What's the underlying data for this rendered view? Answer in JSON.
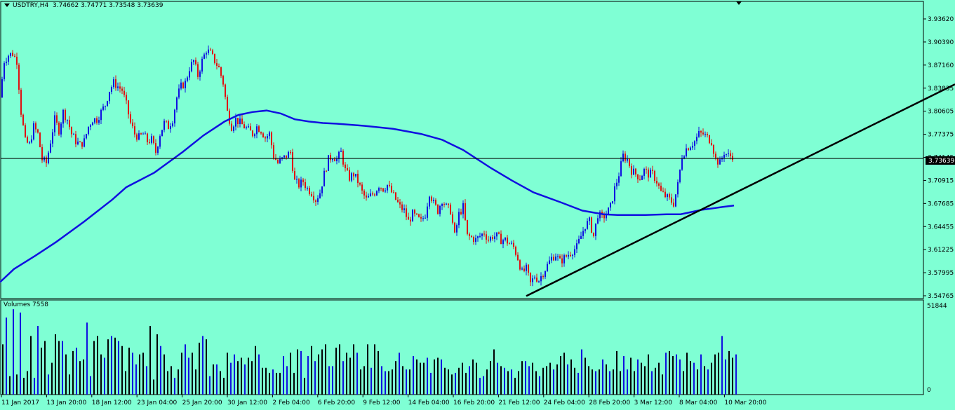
{
  "header": {
    "symbol": "USDTRY,H4",
    "ohlc": "3.74662 3.74771 3.73548 3.73639",
    "volumes_label": "Volumes 7558"
  },
  "colors": {
    "background": "#7FFFD4",
    "bull": "#1010E0",
    "bear": "#E01010",
    "ma": "#1010E0",
    "trendline": "#000000",
    "volume_dark": "#000000",
    "volume_blue": "#1010E0"
  },
  "chart_data": [
    {
      "type": "candlestick",
      "price_axis_ticks": [
        "3.93620",
        "3.90390",
        "3.87160",
        "3.83835",
        "3.80605",
        "3.77375",
        "3.74145",
        "3.70915",
        "3.67685",
        "3.64455",
        "3.61225",
        "3.57995",
        "3.54765"
      ],
      "time_axis_labels": [
        "11 Jan 2017",
        "13 Jan 20:00",
        "18 Jan 12:00",
        "23 Jan 04:00",
        "25 Jan 20:00",
        "30 Jan 12:00",
        "2 Feb 04:00",
        "6 Feb 20:00",
        "9 Feb 12:00",
        "14 Feb 04:00",
        "16 Feb 20:00",
        "21 Feb 12:00",
        "24 Feb 04:00",
        "28 Feb 20:00",
        "3 Mar 12:00",
        "8 Mar 04:00",
        "10 Mar 20:00"
      ],
      "ylim": [
        3.5445,
        3.9515
      ],
      "current_price": "3.73639",
      "close_path": [
        [
          0,
          3.82
        ],
        [
          6,
          3.87
        ],
        [
          12,
          3.878
        ],
        [
          18,
          3.88
        ],
        [
          24,
          3.87
        ],
        [
          30,
          3.8
        ],
        [
          36,
          3.76
        ],
        [
          42,
          3.755
        ],
        [
          48,
          3.78
        ],
        [
          54,
          3.77
        ],
        [
          60,
          3.735
        ],
        [
          66,
          3.73
        ],
        [
          72,
          3.76
        ],
        [
          78,
          3.79
        ],
        [
          84,
          3.775
        ],
        [
          90,
          3.8
        ],
        [
          96,
          3.79
        ],
        [
          102,
          3.77
        ],
        [
          108,
          3.76
        ],
        [
          114,
          3.755
        ],
        [
          120,
          3.76
        ],
        [
          126,
          3.78
        ],
        [
          132,
          3.79
        ],
        [
          138,
          3.79
        ],
        [
          144,
          3.8
        ],
        [
          150,
          3.81
        ],
        [
          156,
          3.83
        ],
        [
          162,
          3.84
        ],
        [
          168,
          3.835
        ],
        [
          174,
          3.83
        ],
        [
          180,
          3.81
        ],
        [
          186,
          3.785
        ],
        [
          192,
          3.77
        ],
        [
          198,
          3.765
        ],
        [
          204,
          3.77
        ],
        [
          210,
          3.76
        ],
        [
          216,
          3.762
        ],
        [
          222,
          3.745
        ],
        [
          228,
          3.77
        ],
        [
          234,
          3.785
        ],
        [
          240,
          3.78
        ],
        [
          246,
          3.79
        ],
        [
          252,
          3.82
        ],
        [
          258,
          3.835
        ],
        [
          264,
          3.84
        ],
        [
          270,
          3.86
        ],
        [
          276,
          3.87
        ],
        [
          282,
          3.85
        ],
        [
          288,
          3.87
        ],
        [
          294,
          3.885
        ],
        [
          300,
          3.88
        ],
        [
          306,
          3.87
        ],
        [
          312,
          3.86
        ],
        [
          318,
          3.84
        ],
        [
          324,
          3.8
        ],
        [
          330,
          3.78
        ],
        [
          336,
          3.79
        ],
        [
          342,
          3.785
        ],
        [
          348,
          3.78
        ],
        [
          354,
          3.775
        ],
        [
          360,
          3.77
        ],
        [
          366,
          3.78
        ],
        [
          372,
          3.775
        ],
        [
          378,
          3.765
        ],
        [
          384,
          3.77
        ],
        [
          390,
          3.74
        ],
        [
          396,
          3.73
        ],
        [
          402,
          3.735
        ],
        [
          408,
          3.74
        ],
        [
          414,
          3.745
        ],
        [
          420,
          3.705
        ],
        [
          426,
          3.7
        ],
        [
          432,
          3.705
        ],
        [
          438,
          3.695
        ],
        [
          444,
          3.69
        ],
        [
          450,
          3.68
        ],
        [
          456,
          3.69
        ],
        [
          462,
          3.715
        ],
        [
          468,
          3.735
        ],
        [
          474,
          3.74
        ],
        [
          480,
          3.735
        ],
        [
          486,
          3.745
        ],
        [
          492,
          3.72
        ],
        [
          498,
          3.71
        ],
        [
          504,
          3.715
        ],
        [
          510,
          3.705
        ],
        [
          516,
          3.69
        ],
        [
          522,
          3.68
        ],
        [
          528,
          3.685
        ],
        [
          534,
          3.69
        ],
        [
          540,
          3.7
        ],
        [
          546,
          3.695
        ],
        [
          552,
          3.7
        ],
        [
          558,
          3.69
        ],
        [
          564,
          3.68
        ],
        [
          570,
          3.67
        ],
        [
          576,
          3.665
        ],
        [
          582,
          3.65
        ],
        [
          588,
          3.66
        ],
        [
          594,
          3.655
        ],
        [
          600,
          3.65
        ],
        [
          606,
          3.66
        ],
        [
          612,
          3.69
        ],
        [
          618,
          3.675
        ],
        [
          624,
          3.665
        ],
        [
          630,
          3.68
        ],
        [
          636,
          3.67
        ],
        [
          642,
          3.665
        ],
        [
          648,
          3.63
        ],
        [
          654,
          3.66
        ],
        [
          660,
          3.67
        ],
        [
          666,
          3.63
        ],
        [
          672,
          3.628
        ],
        [
          678,
          3.625
        ],
        [
          684,
          3.63
        ],
        [
          690,
          3.635
        ],
        [
          696,
          3.625
        ],
        [
          702,
          3.63
        ],
        [
          708,
          3.63
        ],
        [
          714,
          3.625
        ],
        [
          720,
          3.625
        ],
        [
          726,
          3.62
        ],
        [
          732,
          3.615
        ],
        [
          738,
          3.6
        ],
        [
          744,
          3.58
        ],
        [
          750,
          3.585
        ],
        [
          756,
          3.565
        ],
        [
          762,
          3.575
        ],
        [
          768,
          3.57
        ],
        [
          774,
          3.58
        ],
        [
          780,
          3.59
        ],
        [
          786,
          3.6
        ],
        [
          792,
          3.605
        ],
        [
          798,
          3.595
        ],
        [
          804,
          3.6
        ],
        [
          810,
          3.605
        ],
        [
          816,
          3.61
        ],
        [
          822,
          3.615
        ],
        [
          828,
          3.63
        ],
        [
          834,
          3.645
        ],
        [
          840,
          3.65
        ],
        [
          846,
          3.63
        ],
        [
          852,
          3.66
        ],
        [
          858,
          3.655
        ],
        [
          864,
          3.66
        ],
        [
          870,
          3.67
        ],
        [
          876,
          3.695
        ],
        [
          882,
          3.715
        ],
        [
          888,
          3.74
        ],
        [
          894,
          3.735
        ],
        [
          900,
          3.72
        ],
        [
          906,
          3.715
        ],
        [
          912,
          3.71
        ],
        [
          918,
          3.72
        ],
        [
          924,
          3.715
        ],
        [
          930,
          3.715
        ],
        [
          936,
          3.705
        ],
        [
          942,
          3.69
        ],
        [
          948,
          3.685
        ],
        [
          954,
          3.68
        ],
        [
          960,
          3.675
        ],
        [
          966,
          3.7
        ],
        [
          972,
          3.74
        ],
        [
          978,
          3.75
        ],
        [
          984,
          3.755
        ],
        [
          990,
          3.76
        ],
        [
          996,
          3.77
        ],
        [
          1002,
          3.77
        ],
        [
          1008,
          3.765
        ],
        [
          1014,
          3.76
        ],
        [
          1020,
          3.735
        ],
        [
          1026,
          3.73
        ],
        [
          1032,
          3.745
        ],
        [
          1038,
          3.74
        ],
        [
          1044,
          3.74
        ]
      ],
      "moving_average": [
        [
          0,
          3.567
        ],
        [
          20,
          3.585
        ],
        [
          50,
          3.603
        ],
        [
          80,
          3.622
        ],
        [
          120,
          3.65
        ],
        [
          160,
          3.68
        ],
        [
          180,
          3.697
        ],
        [
          220,
          3.717
        ],
        [
          260,
          3.745
        ],
        [
          290,
          3.768
        ],
        [
          320,
          3.787
        ],
        [
          340,
          3.796
        ],
        [
          360,
          3.8
        ],
        [
          380,
          3.802
        ],
        [
          400,
          3.798
        ],
        [
          420,
          3.79
        ],
        [
          440,
          3.787
        ],
        [
          460,
          3.785
        ],
        [
          480,
          3.784
        ],
        [
          520,
          3.781
        ],
        [
          560,
          3.777
        ],
        [
          600,
          3.77
        ],
        [
          630,
          3.762
        ],
        [
          660,
          3.748
        ],
        [
          700,
          3.723
        ],
        [
          730,
          3.706
        ],
        [
          760,
          3.69
        ],
        [
          800,
          3.676
        ],
        [
          830,
          3.665
        ],
        [
          860,
          3.66
        ],
        [
          880,
          3.659
        ],
        [
          920,
          3.659
        ],
        [
          950,
          3.66
        ],
        [
          970,
          3.66
        ],
        [
          1000,
          3.666
        ],
        [
          1030,
          3.67
        ],
        [
          1046,
          3.672
        ]
      ],
      "trendline": [
        [
          750,
          3.548
        ],
        [
          1361,
          3.838
        ]
      ]
    },
    {
      "type": "bar",
      "title": "Volumes 7558",
      "ylim": [
        0,
        51844
      ],
      "axis_ticks": [
        "51844",
        "0"
      ],
      "values": [
        30,
        46,
        11,
        51,
        12,
        49,
        10,
        14,
        35,
        10,
        41,
        28,
        32,
        12,
        19,
        36,
        32,
        32,
        24,
        12,
        26,
        28,
        20,
        21,
        43,
        11,
        32,
        35,
        24,
        22,
        33,
        35,
        34,
        32,
        29,
        14,
        28,
        25,
        18,
        24,
        25,
        17,
        41,
        9,
        36,
        29,
        24,
        14,
        17,
        10,
        15,
        25,
        30,
        22,
        25,
        15,
        31,
        35,
        33,
        11,
        18,
        18,
        14,
        10,
        25,
        19,
        24,
        20,
        22,
        18,
        22,
        20,
        29,
        24,
        16,
        16,
        13,
        15,
        13,
        13,
        23,
        17,
        25,
        13,
        27,
        26,
        10,
        23,
        29,
        20,
        24,
        27,
        30,
        17,
        17,
        28,
        30,
        20,
        25,
        22,
        30,
        25,
        15,
        17,
        30,
        16,
        30,
        26,
        17,
        14,
        14,
        15,
        20,
        25,
        17,
        15,
        15,
        23,
        21,
        19,
        19,
        22,
        13,
        21,
        22,
        21,
        16,
        15,
        12,
        13,
        16,
        19,
        13,
        17,
        21,
        19,
        10,
        11,
        15,
        20,
        27,
        19,
        17,
        16,
        14,
        15,
        10,
        14,
        20,
        20,
        17,
        19,
        14,
        11,
        16,
        17,
        19,
        15,
        18,
        23,
        25,
        18,
        21,
        16,
        13,
        27,
        22,
        17,
        15,
        14,
        15,
        21,
        18,
        14,
        15,
        26,
        14,
        23,
        15,
        22,
        14,
        21,
        19,
        17,
        24,
        14,
        16,
        19,
        12,
        25,
        26,
        23,
        24,
        21,
        14,
        25,
        20,
        19,
        15,
        24,
        17,
        15,
        19,
        24,
        25,
        35,
        21,
        26,
        22,
        24,
        12
      ]
    }
  ]
}
